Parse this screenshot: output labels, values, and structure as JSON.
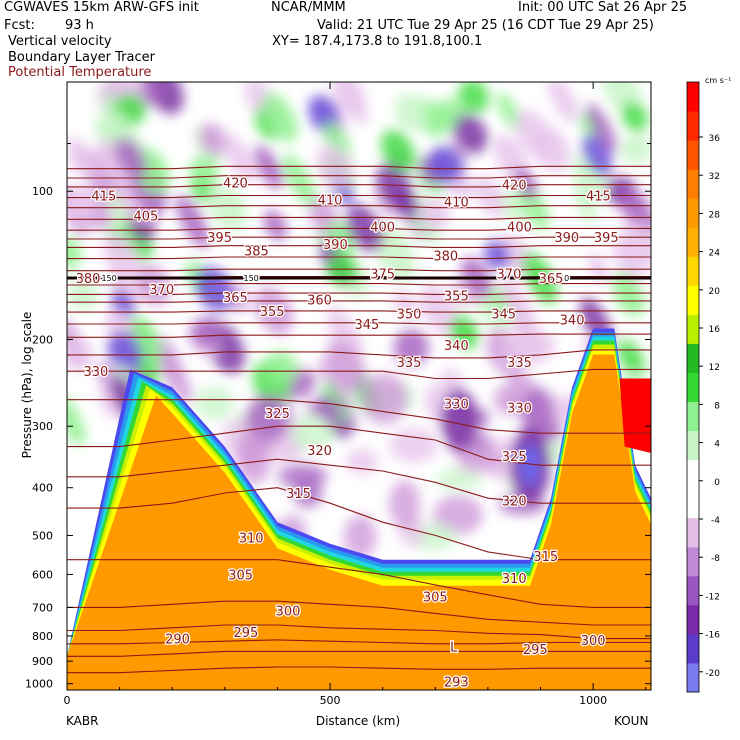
{
  "header": {
    "model": "CGWAVES 15km ARW-GFS init",
    "org": "NCAR/MMM",
    "init": "Init: 00 UTC Sat 26 Apr 25",
    "fcst_label": "Fcst:",
    "fcst_value": "93 h",
    "valid": "Valid: 21 UTC Tue 29 Apr 25 (16 CDT Tue 29 Apr 25)",
    "field1": "Vertical velocity",
    "field2": "Boundary Layer Tracer",
    "field3": "Potential Temperature",
    "xy": "XY= 187.4,173.8 to 191.8,100.1",
    "field3_color": "#8b1a1a"
  },
  "chart_data": {
    "type": "heatmap",
    "title": "",
    "xlabel": "Distance (km)",
    "ylabel": "Pressure (hPa), log scale",
    "xlim": [
      0,
      1110
    ],
    "ylim": [
      1030,
      60
    ],
    "x_ticks": [
      0,
      500,
      1000
    ],
    "y_ticks": [
      100,
      200,
      300,
      400,
      500,
      600,
      700,
      800,
      900,
      1000
    ],
    "left_station": "KABR",
    "right_station": "KOUN",
    "colorbar": {
      "units": "cm s⁻¹",
      "tick_labels": [
        "36",
        "32",
        "28",
        "24",
        "20",
        "16",
        "12",
        "8",
        "4",
        "0",
        "-4",
        "-8",
        "-12",
        "-16",
        "-20"
      ],
      "colors": [
        "#7b7bf0",
        "#5a3cc8",
        "#7a2aa8",
        "#9b55c2",
        "#c08ad6",
        "#e3bfe8",
        "#ffffff",
        "#ffffff",
        "#c8f5c8",
        "#8ef08e",
        "#33d833",
        "#22bb22",
        "#b8f000",
        "#ffff00",
        "#ffd700",
        "#ffb000",
        "#ff9900",
        "#ff7f00",
        "#ff5500",
        "#ff2a00",
        "#ff0000"
      ]
    },
    "theta_isentropes": [
      {
        "value": 290,
        "p": [
          880,
          880,
          870,
          860,
          860,
          860,
          860,
          860,
          860,
          860,
          860,
          860
        ]
      },
      {
        "value": 293,
        "p": [
          950,
          950,
          940,
          930,
          925,
          925,
          930,
          935,
          935,
          930,
          930,
          930
        ]
      },
      {
        "value": 295,
        "p": [
          830,
          830,
          825,
          820,
          815,
          820,
          825,
          830,
          830,
          825,
          825,
          825
        ]
      },
      {
        "value": 300,
        "p": [
          780,
          780,
          770,
          760,
          760,
          770,
          775,
          780,
          790,
          795,
          810,
          810
        ]
      },
      {
        "value": 305,
        "p": [
          700,
          700,
          690,
          680,
          680,
          690,
          700,
          720,
          740,
          750,
          760,
          760
        ]
      },
      {
        "value": 310,
        "p": [
          560,
          560,
          560,
          560,
          560,
          580,
          600,
          630,
          660,
          690,
          700,
          700
        ]
      },
      {
        "value": 315,
        "p": [
          440,
          440,
          430,
          410,
          400,
          430,
          470,
          500,
          540,
          560,
          560,
          560
        ]
      },
      {
        "value": 320,
        "p": [
          380,
          380,
          370,
          360,
          350,
          360,
          370,
          390,
          420,
          430,
          430,
          430
        ]
      },
      {
        "value": 325,
        "p": [
          330,
          330,
          320,
          310,
          300,
          300,
          310,
          320,
          350,
          360,
          360,
          360
        ]
      },
      {
        "value": 330,
        "p": [
          265,
          265,
          265,
          265,
          265,
          270,
          280,
          290,
          305,
          310,
          310,
          310
        ]
      },
      {
        "value": 335,
        "p": [
          232,
          232,
          232,
          232,
          232,
          232,
          232,
          240,
          240,
          235,
          230,
          230
        ]
      },
      {
        "value": 340,
        "p": [
          215,
          215,
          215,
          212,
          212,
          212,
          215,
          218,
          218,
          215,
          210,
          210
        ]
      },
      {
        "value": 345,
        "p": [
          198,
          198,
          198,
          196,
          196,
          196,
          196,
          196,
          196,
          195,
          195,
          195
        ]
      },
      {
        "value": 350,
        "p": [
          186,
          186,
          186,
          185,
          185,
          185,
          185,
          186,
          186,
          185,
          185,
          185
        ]
      },
      {
        "value": 355,
        "p": [
          176,
          176,
          176,
          175,
          175,
          175,
          175,
          176,
          176,
          175,
          175,
          175
        ]
      },
      {
        "value": 360,
        "p": [
          168,
          168,
          168,
          167,
          167,
          167,
          167,
          168,
          168,
          167,
          167,
          167
        ]
      },
      {
        "value": 365,
        "p": [
          162,
          162,
          162,
          161,
          161,
          161,
          161,
          162,
          162,
          161,
          161,
          161
        ]
      },
      {
        "value": 370,
        "p": [
          155,
          155,
          155,
          154,
          154,
          154,
          154,
          155,
          155,
          154,
          154,
          154
        ]
      },
      {
        "value": 375,
        "p": [
          150,
          150,
          150,
          149,
          149,
          149,
          149,
          150,
          150,
          149,
          149,
          149
        ]
      },
      {
        "value": 380,
        "p": [
          145,
          145,
          145,
          144,
          144,
          144,
          144,
          145,
          145,
          144,
          144,
          144
        ]
      },
      {
        "value": 385,
        "p": [
          137,
          137,
          137,
          136,
          136,
          136,
          136,
          137,
          137,
          136,
          136,
          136
        ]
      },
      {
        "value": 390,
        "p": [
          130,
          130,
          130,
          129,
          129,
          129,
          129,
          130,
          130,
          129,
          129,
          129
        ]
      },
      {
        "value": 395,
        "p": [
          125,
          125,
          125,
          124,
          124,
          124,
          124,
          125,
          125,
          124,
          124,
          124
        ]
      },
      {
        "value": 400,
        "p": [
          120,
          120,
          120,
          119,
          119,
          119,
          119,
          120,
          120,
          119,
          119,
          119
        ]
      },
      {
        "value": 405,
        "p": [
          114,
          114,
          114,
          113,
          113,
          113,
          113,
          114,
          114,
          113,
          113,
          113
        ]
      },
      {
        "value": 410,
        "p": [
          108,
          108,
          108,
          107,
          107,
          107,
          107,
          108,
          108,
          107,
          107,
          107
        ]
      },
      {
        "value": 415,
        "p": [
          103,
          103,
          103,
          102,
          102,
          102,
          102,
          103,
          103,
          102,
          102,
          102
        ]
      },
      {
        "value": 420,
        "p": [
          98,
          98,
          98,
          97,
          97,
          97,
          97,
          98,
          98,
          97,
          97,
          97
        ]
      },
      {
        "value": 425,
        "p": [
          94,
          94,
          94,
          93,
          93,
          93,
          93,
          94,
          94,
          93,
          93,
          93
        ]
      },
      {
        "value": 430,
        "p": [
          90,
          90,
          90,
          89,
          89,
          89,
          89,
          90,
          90,
          89,
          89,
          89
        ]
      }
    ],
    "theta_x_km": [
      0,
      100,
      200,
      300,
      400,
      500,
      600,
      700,
      800,
      900,
      1000,
      1110
    ],
    "tropopause_line": {
      "p": 150,
      "label": "150"
    },
    "boundary_layer_top_p": [
      [
        120,
        230
      ],
      [
        200,
        250
      ],
      [
        300,
        330
      ],
      [
        400,
        470
      ],
      [
        500,
        520
      ],
      [
        600,
        560
      ],
      [
        700,
        560
      ],
      [
        800,
        560
      ],
      [
        880,
        560
      ],
      [
        920,
        420
      ],
      [
        960,
        250
      ],
      [
        1000,
        190
      ],
      [
        1040,
        190
      ],
      [
        1080,
        360
      ],
      [
        1110,
        420
      ]
    ],
    "theta_labels": [
      {
        "text": "415",
        "x": 70,
        "p": 102
      },
      {
        "text": "420",
        "x": 320,
        "p": 96
      },
      {
        "text": "410",
        "x": 500,
        "p": 104
      },
      {
        "text": "410",
        "x": 740,
        "p": 105
      },
      {
        "text": "420",
        "x": 850,
        "p": 97
      },
      {
        "text": "415",
        "x": 1010,
        "p": 102
      },
      {
        "text": "405",
        "x": 150,
        "p": 112
      },
      {
        "text": "395",
        "x": 290,
        "p": 124
      },
      {
        "text": "400",
        "x": 600,
        "p": 118
      },
      {
        "text": "400",
        "x": 860,
        "p": 118
      },
      {
        "text": "390",
        "x": 950,
        "p": 124
      },
      {
        "text": "395",
        "x": 1025,
        "p": 124
      },
      {
        "text": "385",
        "x": 360,
        "p": 132
      },
      {
        "text": "390",
        "x": 510,
        "p": 128
      },
      {
        "text": "380",
        "x": 720,
        "p": 135
      },
      {
        "text": "380",
        "x": 40,
        "p": 150
      },
      {
        "text": "375",
        "x": 600,
        "p": 147
      },
      {
        "text": "370",
        "x": 840,
        "p": 147
      },
      {
        "text": "365",
        "x": 920,
        "p": 150
      },
      {
        "text": "370",
        "x": 180,
        "p": 158
      },
      {
        "text": "365",
        "x": 320,
        "p": 164
      },
      {
        "text": "360",
        "x": 480,
        "p": 166
      },
      {
        "text": "355",
        "x": 740,
        "p": 163
      },
      {
        "text": "355",
        "x": 390,
        "p": 175
      },
      {
        "text": "350",
        "x": 650,
        "p": 177
      },
      {
        "text": "345",
        "x": 830,
        "p": 177
      },
      {
        "text": "345",
        "x": 570,
        "p": 186
      },
      {
        "text": "340",
        "x": 960,
        "p": 182
      },
      {
        "text": "340",
        "x": 740,
        "p": 205
      },
      {
        "text": "335",
        "x": 650,
        "p": 222
      },
      {
        "text": "335",
        "x": 860,
        "p": 222
      },
      {
        "text": "330",
        "x": 55,
        "p": 232
      },
      {
        "text": "330",
        "x": 740,
        "p": 270
      },
      {
        "text": "330",
        "x": 860,
        "p": 275
      },
      {
        "text": "325",
        "x": 400,
        "p": 282
      },
      {
        "text": "325",
        "x": 850,
        "p": 345
      },
      {
        "text": "320",
        "x": 480,
        "p": 335
      },
      {
        "text": "320",
        "x": 850,
        "p": 425
      },
      {
        "text": "315",
        "x": 440,
        "p": 410
      },
      {
        "text": "315",
        "x": 910,
        "p": 550
      },
      {
        "text": "310",
        "x": 350,
        "p": 505
      },
      {
        "text": "310",
        "x": 850,
        "p": 610
      },
      {
        "text": "305",
        "x": 330,
        "p": 600
      },
      {
        "text": "305",
        "x": 700,
        "p": 665
      },
      {
        "text": "300",
        "x": 420,
        "p": 710
      },
      {
        "text": "300",
        "x": 1000,
        "p": 815
      },
      {
        "text": "295",
        "x": 340,
        "p": 785
      },
      {
        "text": "295",
        "x": 890,
        "p": 850
      },
      {
        "text": "290",
        "x": 210,
        "p": 810
      },
      {
        "text": "293",
        "x": 740,
        "p": 990
      },
      {
        "text": "L",
        "x": 735,
        "p": 840
      }
    ]
  }
}
